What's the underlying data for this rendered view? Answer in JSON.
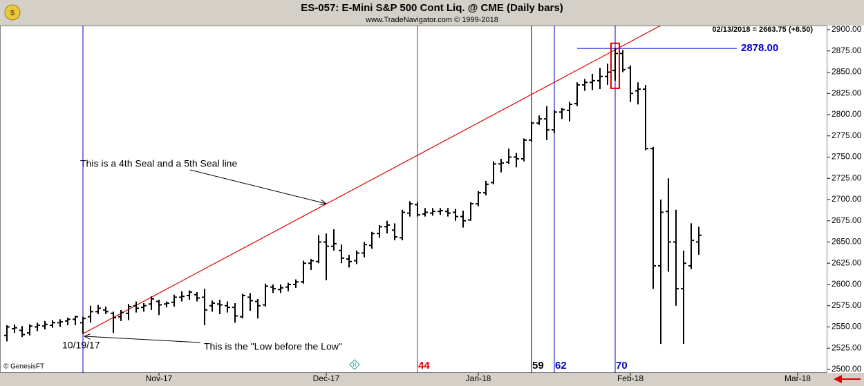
{
  "chart_data": {
    "type": "ohlc",
    "title": "ES-057:  E-Mini S&P 500 Cont Liq. @ CME  (Daily bars)",
    "subtitle": "www.TradeNavigator.com © 1999-2018",
    "last_quote": "02/13/2018 = 2663.75 (+8.50)",
    "credit": "© GenesisFT",
    "color": "#000000",
    "x": [
      -10,
      -9,
      -8,
      -7,
      -6,
      -5,
      -4,
      -3,
      -2,
      -1,
      0,
      1,
      2,
      3,
      4,
      5,
      6,
      7,
      8,
      9,
      10,
      11,
      12,
      13,
      14,
      15,
      16,
      17,
      18,
      19,
      20,
      21,
      22,
      23,
      24,
      25,
      26,
      27,
      28,
      29,
      30,
      31,
      32,
      33,
      34,
      35,
      36,
      37,
      38,
      39,
      40,
      41,
      42,
      43,
      44,
      45,
      46,
      47,
      48,
      49,
      50,
      51,
      52,
      53,
      54,
      55,
      56,
      57,
      58,
      59,
      60,
      61,
      62,
      63,
      64,
      65,
      66,
      67,
      68,
      69,
      70,
      71,
      72,
      73,
      74,
      75,
      76,
      77,
      78,
      79,
      80,
      81
    ],
    "open": [
      2540,
      2548,
      2546,
      2543,
      2550,
      2551,
      2552,
      2555,
      2557,
      2559,
      2555,
      2562,
      2568,
      2570,
      2566,
      2562,
      2566,
      2575,
      2573,
      2577,
      2580,
      2577,
      2579,
      2585,
      2587,
      2588,
      2585,
      2575,
      2577,
      2575,
      2573,
      2562,
      2585,
      2580,
      2576,
      2597,
      2594,
      2597,
      2600,
      2603,
      2625,
      2627,
      2650,
      2645,
      2640,
      2630,
      2628,
      2637,
      2646,
      2660,
      2668,
      2664,
      2655,
      2684,
      2694,
      2683,
      2684,
      2686,
      2686,
      2685,
      2680,
      2676,
      2695,
      2708,
      2720,
      2742,
      2744,
      2750,
      2748,
      2770,
      2790,
      2795,
      2782,
      2803,
      2805,
      2813,
      2835,
      2838,
      2840,
      2845,
      2852,
      2872,
      2855,
      2828,
      2830,
      2760,
      2622,
      2686,
      2650,
      2595,
      2622,
      2650
    ],
    "high": [
      2552,
      2553,
      2551,
      2553,
      2555,
      2557,
      2558,
      2559,
      2561,
      2563,
      2562,
      2575,
      2576,
      2574,
      2568,
      2570,
      2577,
      2580,
      2578,
      2586,
      2582,
      2580,
      2588,
      2592,
      2593,
      2591,
      2595,
      2581,
      2582,
      2580,
      2578,
      2589,
      2590,
      2583,
      2601,
      2600,
      2600,
      2602,
      2606,
      2628,
      2630,
      2658,
      2660,
      2665,
      2647,
      2635,
      2640,
      2650,
      2662,
      2670,
      2675,
      2672,
      2688,
      2698,
      2697,
      2690,
      2690,
      2690,
      2690,
      2689,
      2687,
      2697,
      2710,
      2722,
      2745,
      2748,
      2760,
      2755,
      2772,
      2792,
      2799,
      2810,
      2805,
      2808,
      2815,
      2838,
      2842,
      2848,
      2855,
      2860,
      2878,
      2876,
      2858,
      2838,
      2835,
      2762,
      2700,
      2725,
      2688,
      2640,
      2672,
      2668
    ],
    "low": [
      2533,
      2543,
      2538,
      2540,
      2545,
      2547,
      2549,
      2550,
      2552,
      2552,
      2542,
      2555,
      2565,
      2565,
      2543,
      2557,
      2558,
      2567,
      2568,
      2570,
      2564,
      2573,
      2574,
      2580,
      2582,
      2580,
      2552,
      2568,
      2565,
      2567,
      2555,
      2560,
      2569,
      2560,
      2574,
      2590,
      2590,
      2592,
      2596,
      2601,
      2617,
      2625,
      2605,
      2640,
      2625,
      2620,
      2624,
      2632,
      2642,
      2655,
      2660,
      2652,
      2652,
      2680,
      2680,
      2680,
      2681,
      2682,
      2680,
      2675,
      2667,
      2675,
      2692,
      2705,
      2718,
      2732,
      2742,
      2738,
      2745,
      2768,
      2788,
      2770,
      2778,
      2795,
      2792,
      2810,
      2828,
      2829,
      2830,
      2835,
      2840,
      2850,
      2815,
      2812,
      2758,
      2595,
      2530,
      2615,
      2575,
      2530,
      2618,
      2635
    ],
    "close": [
      2550,
      2549,
      2541,
      2551,
      2552,
      2553,
      2555,
      2556,
      2559,
      2562,
      2560,
      2568,
      2572,
      2568,
      2561,
      2567,
      2574,
      2572,
      2575,
      2583,
      2576,
      2578,
      2585,
      2586,
      2591,
      2584,
      2570,
      2578,
      2576,
      2573,
      2563,
      2587,
      2581,
      2575,
      2598,
      2595,
      2596,
      2600,
      2603,
      2625,
      2628,
      2650,
      2645,
      2648,
      2631,
      2627,
      2637,
      2647,
      2660,
      2668,
      2670,
      2656,
      2685,
      2695,
      2682,
      2685,
      2686,
      2687,
      2684,
      2680,
      2675,
      2695,
      2708,
      2718,
      2742,
      2743,
      2750,
      2748,
      2770,
      2790,
      2795,
      2782,
      2803,
      2806,
      2812,
      2835,
      2838,
      2840,
      2845,
      2850,
      2872,
      2853,
      2825,
      2830,
      2760,
      2622,
      2685,
      2650,
      2595,
      2625,
      2652,
      2658
    ],
    "xlim": [
      -10.91,
      97.91
    ],
    "ylim": [
      2495.9,
      2904.9
    ],
    "xticks": [
      {
        "value": 10,
        "label": "Nov-17"
      },
      {
        "value": 32,
        "label": "Dec-17"
      },
      {
        "value": 52,
        "label": "Jan-18"
      },
      {
        "value": 72,
        "label": "Feb-18"
      },
      {
        "value": 94,
        "label": "Mar-18"
      }
    ],
    "yticks": [
      {
        "value": 2500,
        "label": "2500.00"
      },
      {
        "value": 2525,
        "label": "2525.00"
      },
      {
        "value": 2550,
        "label": "2550.00"
      },
      {
        "value": 2575,
        "label": "2575.00"
      },
      {
        "value": 2600,
        "label": "2600.00"
      },
      {
        "value": 2625,
        "label": "2625.00"
      },
      {
        "value": 2650,
        "label": "2650.00"
      },
      {
        "value": 2675,
        "label": "2675.00"
      },
      {
        "value": 2700,
        "label": "2700.00"
      },
      {
        "value": 2725,
        "label": "2725.00"
      },
      {
        "value": 2750,
        "label": "2750.00"
      },
      {
        "value": 2775,
        "label": "2775.00"
      },
      {
        "value": 2800,
        "label": "2800.00"
      },
      {
        "value": 2825,
        "label": "2825.00"
      },
      {
        "value": 2850,
        "label": "2850.00"
      },
      {
        "value": 2875,
        "label": "2875.00"
      },
      {
        "value": 2900,
        "label": "2900.00"
      }
    ],
    "vlines": [
      {
        "x": 0,
        "color": "#0000cc"
      },
      {
        "x": 44,
        "label": "44",
        "color": "#dd0000"
      },
      {
        "x": 59,
        "label": "59",
        "color": "#000000"
      },
      {
        "x": 62,
        "label": "62",
        "color": "#0000cc"
      },
      {
        "x": 70,
        "label": "70",
        "color": "#0000cc"
      }
    ],
    "trendline": {
      "x": [
        0,
        76
      ],
      "y": [
        2542,
        2905
      ],
      "color": "#dd0000"
    },
    "hline": {
      "value": 2878,
      "label": "2878.00",
      "x": [
        65,
        86
      ],
      "color": "#0000cc"
    },
    "box": {
      "x": 70,
      "low": 2831,
      "high": 2884,
      "color": "#dd0000"
    },
    "annotations": {
      "seal": "This is a 4th Seal and a 5th Seal line",
      "date": "10/19/17",
      "low": "This is the \"Low before the Low\""
    }
  }
}
